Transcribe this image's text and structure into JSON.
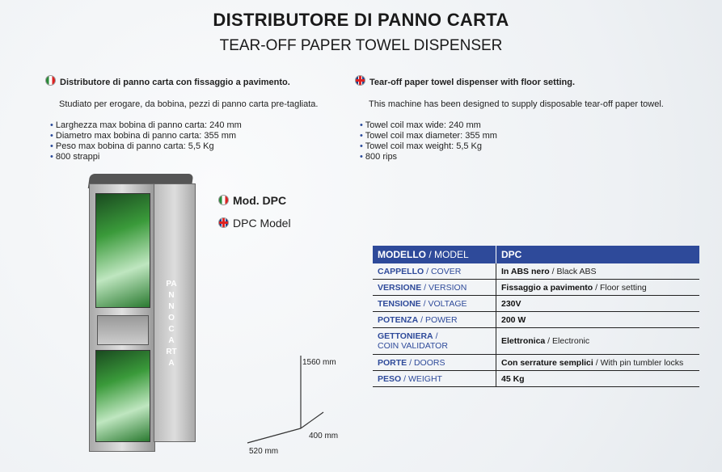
{
  "title": "DISTRIBUTORE DI PANNO CARTA",
  "subtitle": "TEAR-OFF PAPER TOWEL DISPENSER",
  "it": {
    "flag": "italy-flag-icon",
    "heading": "Distributore di panno carta con fissaggio a pavimento.",
    "intro": "Studiato per erogare, da bobina, pezzi di panno carta pre-tagliata.",
    "bullets": [
      "Larghezza max bobina di panno carta: 240 mm",
      "Diametro max bobina di panno carta: 355 mm",
      "Peso max bobina di panno carta: 5,5 Kg",
      "800 strappi"
    ]
  },
  "en": {
    "flag": "uk-flag-icon",
    "heading": "Tear-off paper towel dispenser with floor setting.",
    "intro": "This machine has been designed to supply disposable tear-off paper towel.",
    "bullets": [
      "Towel coil max wide: 240 mm",
      "Towel coil max diameter: 355 mm",
      "Towel coil max weight: 5,5 Kg",
      "800 rips"
    ]
  },
  "model": {
    "it_prefix": "Mod. ",
    "it_name": "DPC",
    "en": "DPC Model"
  },
  "machine_label": "PANNO CARTA",
  "dimensions": {
    "height": "1560 mm",
    "depth": "400 mm",
    "width": "520 mm"
  },
  "table": {
    "header": {
      "it": "MODELLO",
      "en": "MODEL",
      "value": "DPC"
    },
    "rows": [
      {
        "it": "CAPPELLO",
        "en": "COVER",
        "v_it": "In ABS nero",
        "v_en": "Black ABS"
      },
      {
        "it": "VERSIONE",
        "en": "VERSION",
        "v_it": "Fissaggio a pavimento",
        "v_en": "Floor setting"
      },
      {
        "it": "TENSIONE",
        "en": "VOLTAGE",
        "v_it": "230V",
        "v_en": ""
      },
      {
        "it": "POTENZA",
        "en": "POWER",
        "v_it": "200 W",
        "v_en": ""
      },
      {
        "it": "GETTONIERA",
        "en": "COIN VALIDATOR",
        "v_it": "Elettronica",
        "v_en": "Electronic"
      },
      {
        "it": "PORTE",
        "en": "DOORS",
        "v_it": "Con serrature semplici",
        "v_en": "With pin tumbler locks"
      },
      {
        "it": "PESO",
        "en": "WEIGHT",
        "v_it": "45 Kg",
        "v_en": ""
      }
    ]
  },
  "colors": {
    "accent": "#2e4a9a"
  }
}
